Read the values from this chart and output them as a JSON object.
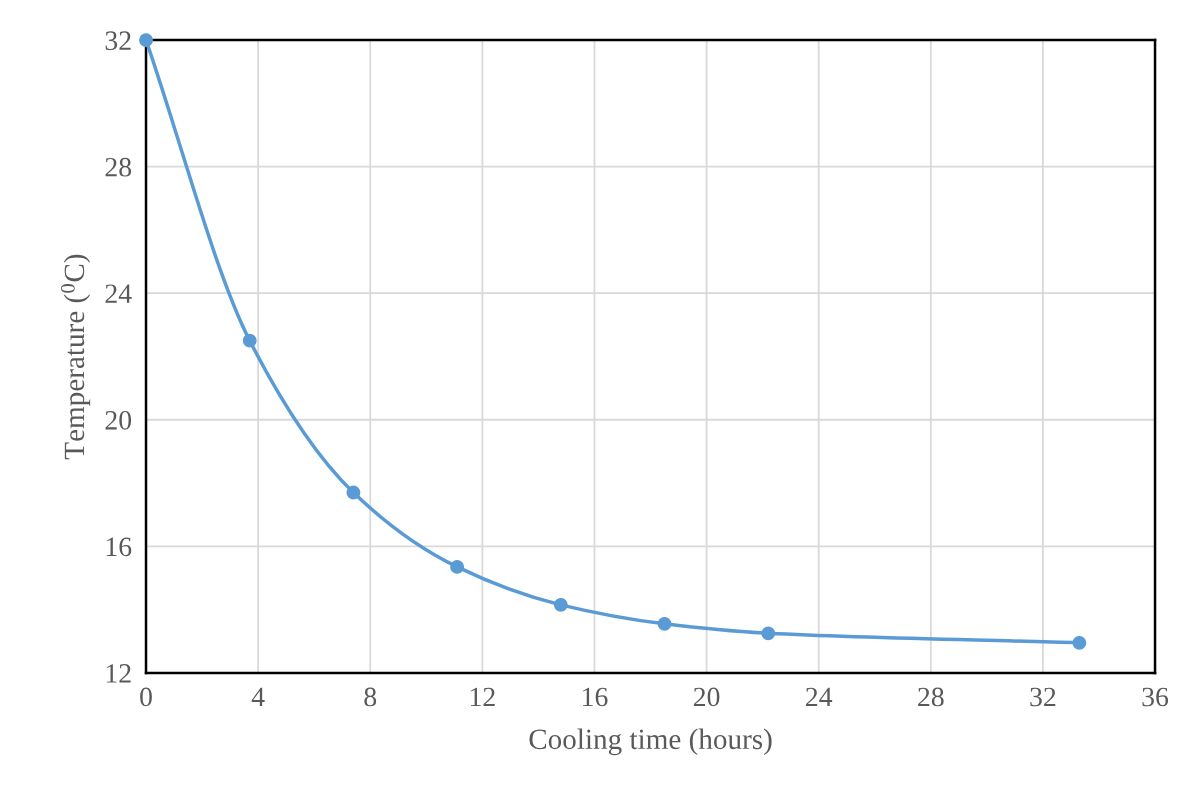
{
  "chart_data": {
    "type": "line",
    "xlabel": "Cooling time (hours)",
    "ylabel": "Temperature ($^{0}$C)",
    "x": [
      0,
      3.7,
      7.4,
      11.1,
      14.8,
      18.5,
      22.2,
      33.3
    ],
    "series": [
      {
        "color": "#5b9bd5",
        "values": [
          32,
          22.5,
          17.7,
          15.35,
          14.15,
          13.55,
          13.25,
          12.95
        ]
      }
    ],
    "xlim": [
      0,
      36
    ],
    "xticks": [
      0,
      4,
      8,
      12,
      16,
      20,
      24,
      28,
      32,
      36
    ],
    "ylim": [
      12,
      32
    ],
    "yticks": [
      12,
      16,
      20,
      24,
      28,
      32
    ],
    "grid": true,
    "marker": "circle",
    "line_style": "solid",
    "legend": false
  }
}
